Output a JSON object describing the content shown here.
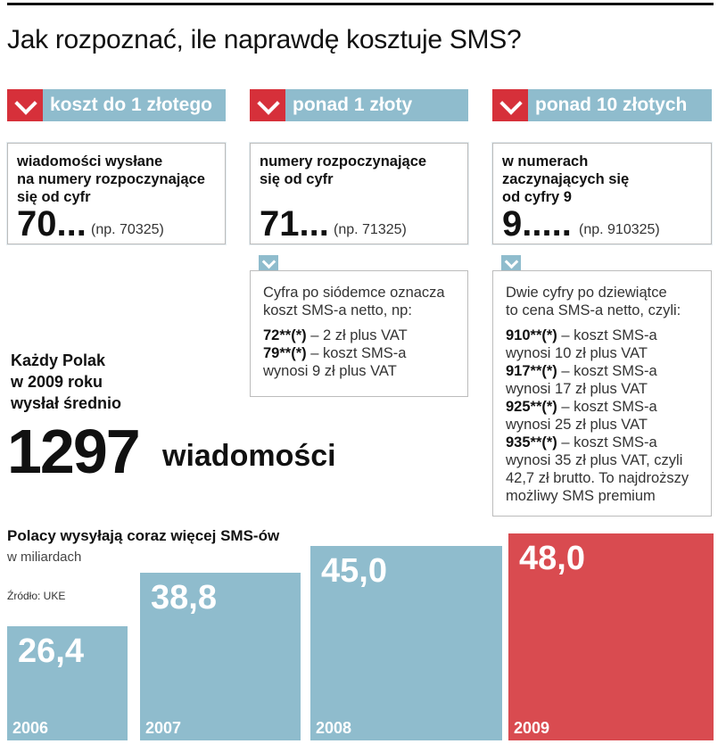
{
  "title": "Jak rozpoznać, ile naprawdę kosztuje SMS?",
  "columns": [
    {
      "tab": "koszt do 1 złotego",
      "desc": [
        "wiadomości wysłane",
        "na numery rozpoczynające",
        "się od cyfr"
      ],
      "big": "70...",
      "example": "(np. 70325)"
    },
    {
      "tab": "ponad 1 złoty",
      "desc": [
        "numery rozpoczynające",
        "się od cyfr"
      ],
      "big": "71...",
      "example": "(np. 71325)",
      "note": {
        "intro": [
          "Cyfra po siódemce oznacza",
          "koszt SMS-a netto, np:"
        ],
        "items": [
          {
            "code": "72**(*)",
            "text": " –  2 zł plus VAT"
          },
          {
            "code": "79**(*)",
            "text": " – koszt SMS-a",
            "cont": "wynosi 9 zł plus VAT"
          }
        ]
      }
    },
    {
      "tab": "ponad 10 złotych",
      "desc": [
        "w numerach",
        "zaczynających się",
        "od cyfry 9"
      ],
      "big": "9.....",
      "example": "(np. 910325)",
      "note": {
        "intro": [
          "Dwie cyfry po dziewiątce",
          "to cena SMS-a netto, czyli:"
        ],
        "items": [
          {
            "code": "910**(*)",
            "text": " – koszt SMS-a",
            "cont": "wynosi 10 zł plus VAT"
          },
          {
            "code": "917**(*)",
            "text": " – koszt SMS-a",
            "cont": "wynosi 17 zł plus VAT"
          },
          {
            "code": "925**(*)",
            "text": " – koszt SMS-a",
            "cont": "wynosi 25 zł plus VAT"
          },
          {
            "code": "935**(*)",
            "text": " – koszt SMS-a",
            "cont": "wynosi 35 zł plus VAT, czyli"
          }
        ],
        "outro": [
          "42,7 zł brutto. To najdroższy",
          "możliwy SMS premium"
        ]
      }
    }
  ],
  "stat": {
    "label": [
      "Każdy Polak",
      "w 2009 roku",
      "wysłał średnio"
    ],
    "number": "1297",
    "unit": "wiadomości"
  },
  "colors": {
    "accent_blue": "#8fbccd",
    "accent_red": "#d6303a",
    "bar_normal": "#8fbccd",
    "bar_highlight": "#d94b50"
  },
  "chart_data": {
    "type": "bar",
    "title": "Polacy wysyłają coraz więcej SMS-ów",
    "subtitle": "w miliardach",
    "source": "Źródło: UKE",
    "categories": [
      "2006",
      "2007",
      "2008",
      "2009"
    ],
    "values": [
      26.4,
      38.8,
      45.0,
      48.0
    ],
    "value_labels": [
      "26,4",
      "38,8",
      "45,0",
      "48,0"
    ],
    "highlight": "2009",
    "ylim": [
      0,
      48
    ]
  }
}
